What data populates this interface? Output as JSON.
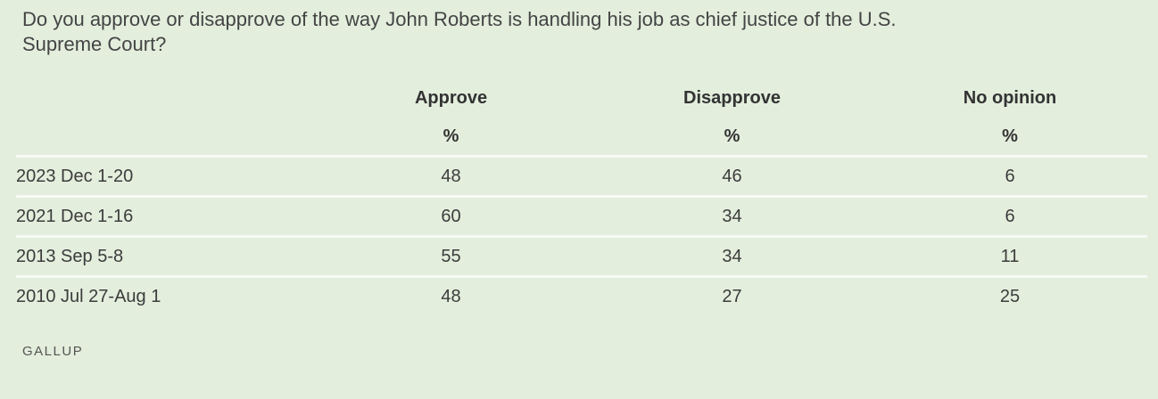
{
  "chart_data": {
    "type": "table",
    "title": "Do you approve or disapprove of the way John Roberts is handling his job as chief justice of the U.S. Supreme Court?",
    "columns": [
      "Approve",
      "Disapprove",
      "No opinion"
    ],
    "units": [
      "%",
      "%",
      "%"
    ],
    "rows": [
      {
        "label": "2023 Dec 1-20",
        "values": [
          "48",
          "46",
          "6"
        ]
      },
      {
        "label": "2021 Dec 1-16",
        "values": [
          "60",
          "34",
          "6"
        ]
      },
      {
        "label": "2013 Sep 5-8",
        "values": [
          "55",
          "34",
          "11"
        ]
      },
      {
        "label": "2010 Jul 27-Aug 1",
        "values": [
          "48",
          "27",
          "25"
        ]
      }
    ],
    "source": "GALLUP"
  }
}
